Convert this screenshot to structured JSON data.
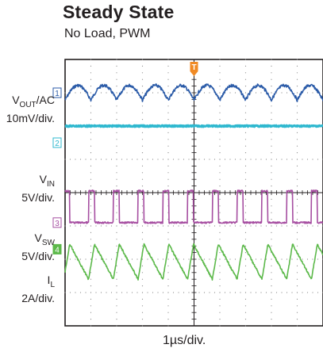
{
  "chart_data": {
    "type": "line",
    "title": "Steady State",
    "subtitle": "No Load, PWM",
    "xlabel": "1µs/div.",
    "grid": true,
    "x_divisions": 10,
    "y_divisions": 8,
    "trigger_marker": "T",
    "series": [
      {
        "name_main": "V",
        "name_sub": "OUT",
        "name_suffix": "/AC",
        "scale": "10mV/div.",
        "channel": "1",
        "color": "#2b5ba8",
        "shape": "scalloped ripple",
        "ripple_cycles_per_div": 1,
        "ripple_amplitude_div": 0.22,
        "y_level_div": 1.0
      },
      {
        "name_main": "V",
        "name_sub": "IN",
        "name_suffix": "",
        "scale": "5V/div.",
        "channel": "2",
        "color": "#2fb8cf",
        "shape": "flat dc",
        "y_level_div": 2.0
      },
      {
        "name_main": "V",
        "name_sub": "SW",
        "name_suffix": "",
        "scale": "5V/div.",
        "channel": "3",
        "color": "#a64ea1",
        "shape": "pwm square",
        "period_div": 0.96,
        "duty": 0.24,
        "y_low_div": 4.9,
        "y_high_div": 3.95
      },
      {
        "name_main": "I",
        "name_sub": "L",
        "name_suffix": "",
        "scale": "2A/div.",
        "channel": "4",
        "color": "#5cb94a",
        "shape": "sawtooth",
        "period_div": 0.96,
        "rise_fraction": 0.24,
        "y_peak_div": 5.55,
        "y_valley_div": 6.6
      }
    ]
  }
}
